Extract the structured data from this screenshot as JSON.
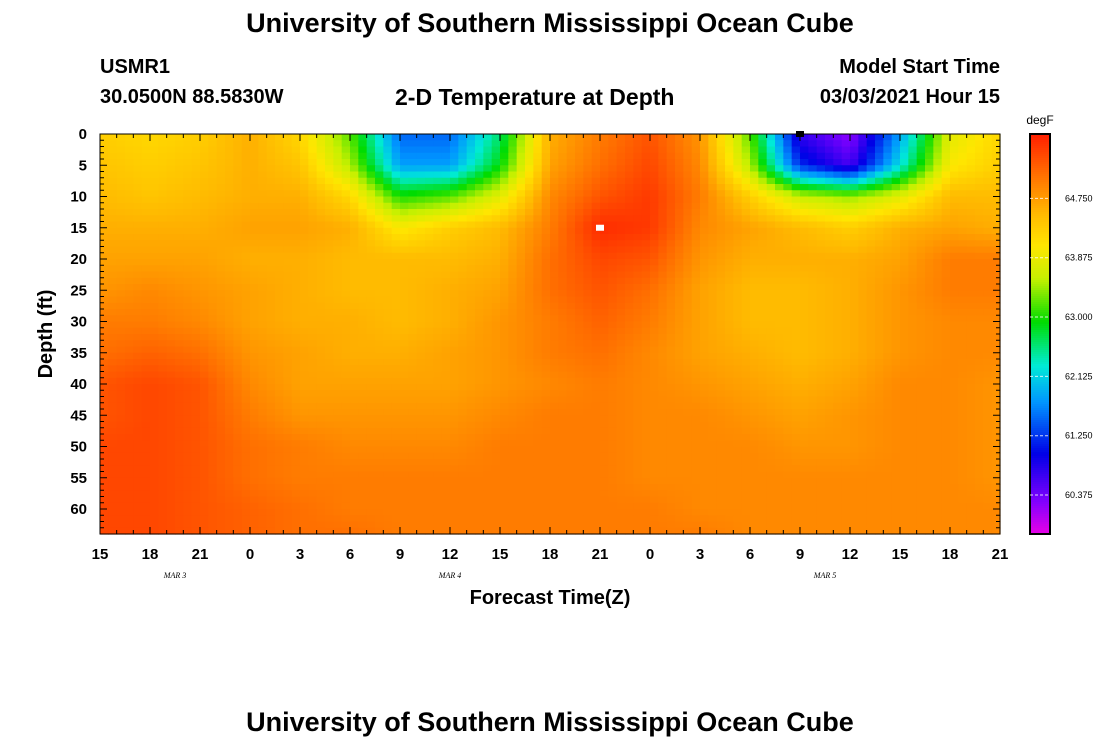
{
  "header": {
    "title": "University of Southern Mississippi Ocean Cube",
    "station": "USMR1",
    "coords": "30.0500N 88.5830W",
    "subtitle": "2-D Temperature at Depth",
    "model_label": "Model Start Time",
    "model_time": "03/03/2021 Hour 15"
  },
  "footer": {
    "title": "University of Southern Mississippi Ocean Cube"
  },
  "chart_data": {
    "type": "heatmap",
    "title": "2-D Temperature at Depth",
    "xlabel": "Forecast Time(Z)",
    "ylabel": "Depth (ft)",
    "x_tick_labels": [
      "15",
      "18",
      "21",
      "0",
      "3",
      "6",
      "9",
      "12",
      "15",
      "18",
      "21",
      "0",
      "3",
      "6",
      "9",
      "12",
      "15",
      "18",
      "21"
    ],
    "x_hours_since_start": [
      0,
      3,
      6,
      9,
      12,
      15,
      18,
      21,
      24,
      27,
      30,
      33,
      36,
      39,
      42,
      45,
      48,
      51,
      54
    ],
    "xlim": [
      0,
      54
    ],
    "date_labels": [
      {
        "text": "MAR 3",
        "at_hour": 4.5
      },
      {
        "text": "MAR 4",
        "at_hour": 21
      },
      {
        "text": "MAR 5",
        "at_hour": 43.5
      }
    ],
    "y_ticks": [
      0,
      5,
      10,
      15,
      20,
      25,
      30,
      35,
      40,
      45,
      50,
      55,
      60
    ],
    "ylim": [
      0,
      64
    ],
    "colorbar": {
      "unit": "degF",
      "ticks": [
        "64.750",
        "63.875",
        "63.000",
        "62.125",
        "61.250",
        "60.375"
      ],
      "tick_values": [
        64.75,
        63.875,
        63.0,
        62.125,
        61.25,
        60.375
      ],
      "range": [
        59.8,
        65.7
      ]
    },
    "temperature_grid": {
      "x_hours": [
        0,
        3,
        6,
        9,
        12,
        15,
        18,
        21,
        24,
        27,
        30,
        33,
        36,
        39,
        42,
        45,
        48,
        51,
        54
      ],
      "depth_ft": [
        0,
        5,
        10,
        15,
        20,
        25,
        30,
        35,
        40,
        45,
        50,
        55,
        60,
        64
      ],
      "values_degF": [
        [
          64.3,
          64.2,
          64.3,
          64.6,
          64.2,
          63.2,
          61.5,
          61.5,
          62.6,
          64.6,
          65.0,
          65.3,
          64.8,
          63.2,
          60.7,
          60.2,
          61.8,
          63.8,
          64.2
        ],
        [
          64.4,
          64.3,
          64.4,
          64.6,
          64.4,
          63.5,
          61.8,
          61.8,
          62.9,
          64.7,
          65.1,
          65.4,
          64.9,
          63.5,
          61.2,
          60.6,
          62.2,
          64.0,
          64.3
        ],
        [
          64.5,
          64.4,
          64.5,
          64.6,
          64.6,
          64.2,
          63.0,
          63.2,
          63.8,
          64.9,
          65.3,
          65.5,
          65.0,
          64.3,
          63.6,
          63.4,
          63.8,
          64.5,
          64.5
        ],
        [
          64.6,
          64.6,
          64.6,
          64.7,
          64.7,
          64.6,
          64.0,
          64.3,
          64.5,
          65.0,
          65.6,
          65.5,
          64.9,
          64.7,
          64.5,
          64.3,
          64.6,
          64.7,
          64.6
        ],
        [
          64.7,
          64.7,
          64.7,
          64.6,
          64.6,
          64.5,
          64.5,
          64.5,
          64.6,
          65.1,
          65.4,
          65.3,
          64.8,
          64.6,
          64.6,
          64.6,
          64.7,
          65.0,
          65.0
        ],
        [
          64.8,
          64.9,
          64.8,
          64.7,
          64.6,
          64.5,
          64.5,
          64.6,
          64.7,
          65.1,
          65.3,
          65.1,
          64.7,
          64.5,
          64.5,
          64.6,
          64.8,
          65.0,
          65.0
        ],
        [
          65.0,
          65.0,
          64.9,
          64.7,
          64.6,
          64.6,
          64.5,
          64.6,
          64.8,
          65.0,
          65.2,
          65.0,
          64.7,
          64.5,
          64.5,
          64.6,
          64.8,
          64.9,
          64.9
        ],
        [
          65.1,
          65.2,
          65.1,
          64.8,
          64.7,
          64.6,
          64.6,
          64.7,
          64.8,
          65.0,
          65.1,
          64.9,
          64.7,
          64.6,
          64.5,
          64.6,
          64.8,
          64.9,
          64.9
        ],
        [
          65.3,
          65.4,
          65.3,
          64.9,
          64.7,
          64.7,
          64.7,
          64.7,
          64.8,
          64.9,
          65.0,
          64.9,
          64.8,
          64.7,
          64.6,
          64.7,
          64.9,
          64.9,
          64.8
        ],
        [
          65.3,
          65.4,
          65.3,
          65.0,
          64.8,
          64.8,
          64.8,
          64.8,
          64.9,
          65.0,
          65.0,
          64.9,
          64.9,
          64.8,
          64.7,
          64.8,
          64.9,
          64.9,
          64.8
        ],
        [
          65.4,
          65.4,
          65.3,
          65.1,
          65.0,
          64.9,
          64.9,
          64.9,
          65.0,
          65.0,
          65.0,
          64.9,
          64.9,
          64.9,
          64.8,
          64.8,
          64.9,
          64.9,
          64.8
        ],
        [
          65.4,
          65.4,
          65.3,
          65.1,
          65.0,
          65.0,
          65.0,
          65.0,
          65.0,
          65.0,
          65.0,
          64.9,
          64.9,
          64.9,
          64.9,
          64.9,
          64.9,
          64.9,
          64.8
        ],
        [
          65.4,
          65.4,
          65.3,
          65.2,
          65.1,
          65.0,
          65.0,
          65.0,
          65.0,
          65.0,
          65.0,
          65.0,
          64.9,
          64.9,
          64.9,
          64.9,
          64.9,
          64.9,
          64.9
        ],
        [
          65.4,
          65.4,
          65.3,
          65.2,
          65.1,
          65.1,
          65.0,
          65.0,
          65.0,
          65.0,
          65.0,
          65.0,
          65.0,
          64.9,
          64.9,
          64.9,
          64.9,
          64.9,
          64.9
        ]
      ]
    },
    "markers": [
      {
        "hour": 30,
        "depth": 15,
        "color": "#ffffff"
      },
      {
        "hour": 42,
        "depth": 0,
        "color": "#000000"
      }
    ]
  }
}
